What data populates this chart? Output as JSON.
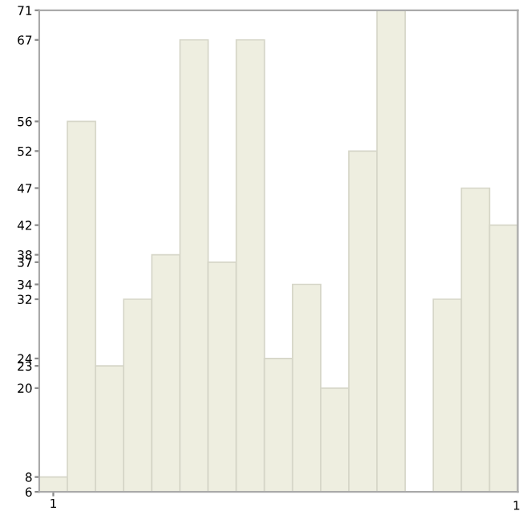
{
  "chart_data": {
    "type": "bar",
    "categories": [
      "1",
      null,
      null,
      null,
      null,
      null,
      null,
      null,
      null,
      null,
      null,
      null,
      null,
      null,
      null,
      null,
      null
    ],
    "values": [
      8,
      56,
      23,
      32,
      38,
      67,
      37,
      67,
      24,
      34,
      20,
      52,
      71,
      6,
      32,
      47,
      42
    ],
    "color": "#eeeee0",
    "ylim": [
      6,
      71
    ],
    "yticks": [
      6,
      8,
      20,
      23,
      24,
      32,
      34,
      37,
      38,
      42,
      47,
      52,
      56,
      67,
      71
    ],
    "annotations": [
      "1"
    ],
    "grid": false,
    "legend": false
  }
}
